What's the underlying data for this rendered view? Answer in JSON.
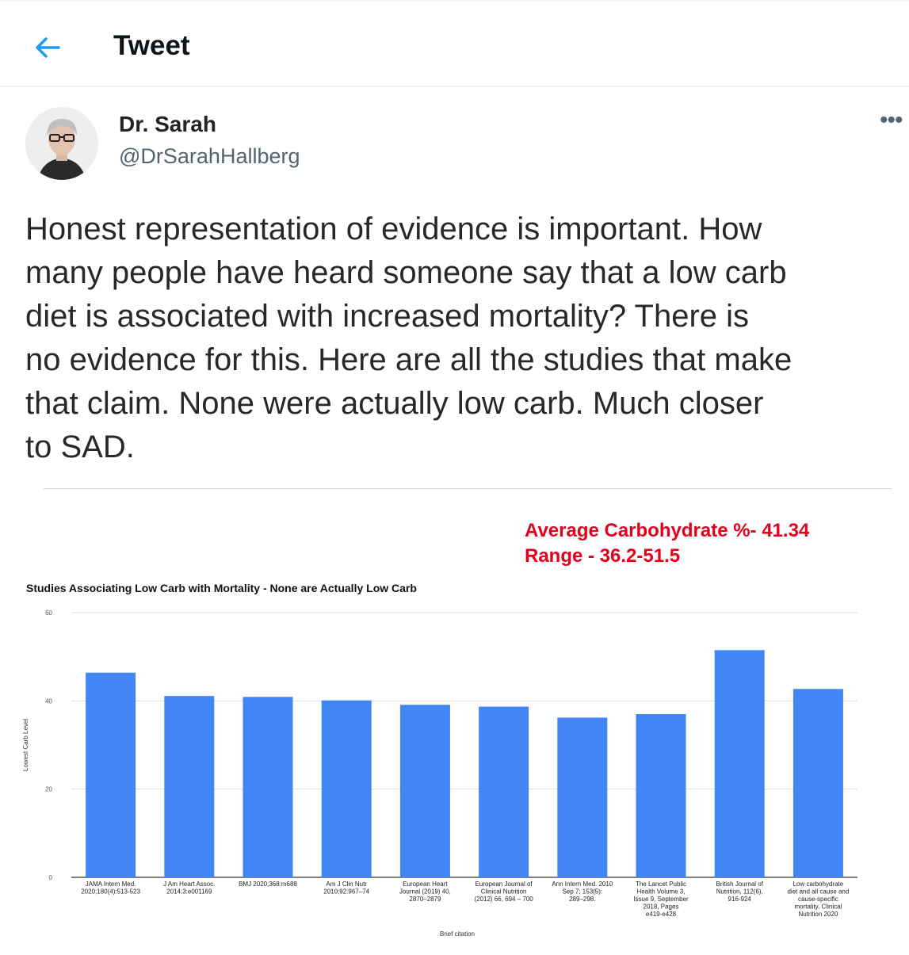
{
  "header": {
    "title": "Tweet",
    "back_icon": "arrow-left-icon"
  },
  "author": {
    "name": "Dr. Sarah",
    "handle": "@DrSarahHallberg",
    "more_icon": "more-dots-icon",
    "more_label": "•••"
  },
  "tweet": {
    "text": "Honest representation of evidence is important.  How\nmany people have heard someone say that a low carb\ndiet is associated with increased mortality?  There is\nno evidence for this.  Here are all the studies that make\nthat claim.  None were actually low carb. Much closer\nto SAD."
  },
  "annotation": {
    "line1": "Average Carbohydrate %- 41.34",
    "line2": "Range - 36.2-51.5",
    "color": "#e3001b"
  },
  "colors": {
    "accent": "#1d9bf0",
    "bar": "#4285f4"
  },
  "chart_data": {
    "type": "bar",
    "title": "Studies Associating Low Carb with Mortality - None are Actually Low Carb",
    "xlabel": "Brief citation",
    "ylabel": "Lowest Carb Level",
    "ylim": [
      0,
      60
    ],
    "yticks": [
      0,
      20,
      40,
      60
    ],
    "grid": true,
    "categories": [
      [
        "JAMA Intern Med.",
        "2020;180(4):513-523"
      ],
      [
        "J Am Heart Assoc.",
        "2014;3:e001169"
      ],
      [
        "BMJ 2020;368:m688"
      ],
      [
        "Am J Clin Nutr",
        "2010;92:967–74"
      ],
      [
        "European Heart",
        "Journal (2019) 40,",
        "2870–2879"
      ],
      [
        "European Journal of",
        "Clinical Nutrition",
        "(2012) 66, 694 – 700"
      ],
      [
        "Ann Intern Med. 2010",
        "Sep 7; 153(5):",
        "289–298."
      ],
      [
        "The Lancet Public",
        "Health Volume 3,",
        "Issue 9, September",
        "2018, Pages",
        "e419-e428"
      ],
      [
        "British Journal of",
        "Nutrition, 112(6),",
        "916-924"
      ],
      [
        "Low carbohydrate",
        "diet and all cause and",
        "cause-specific",
        "mortality, Clinical",
        "Nutrition 2020"
      ]
    ],
    "values": [
      46.4,
      41.1,
      40.9,
      40.1,
      39.1,
      38.7,
      36.2,
      37.0,
      51.5,
      42.7
    ]
  }
}
